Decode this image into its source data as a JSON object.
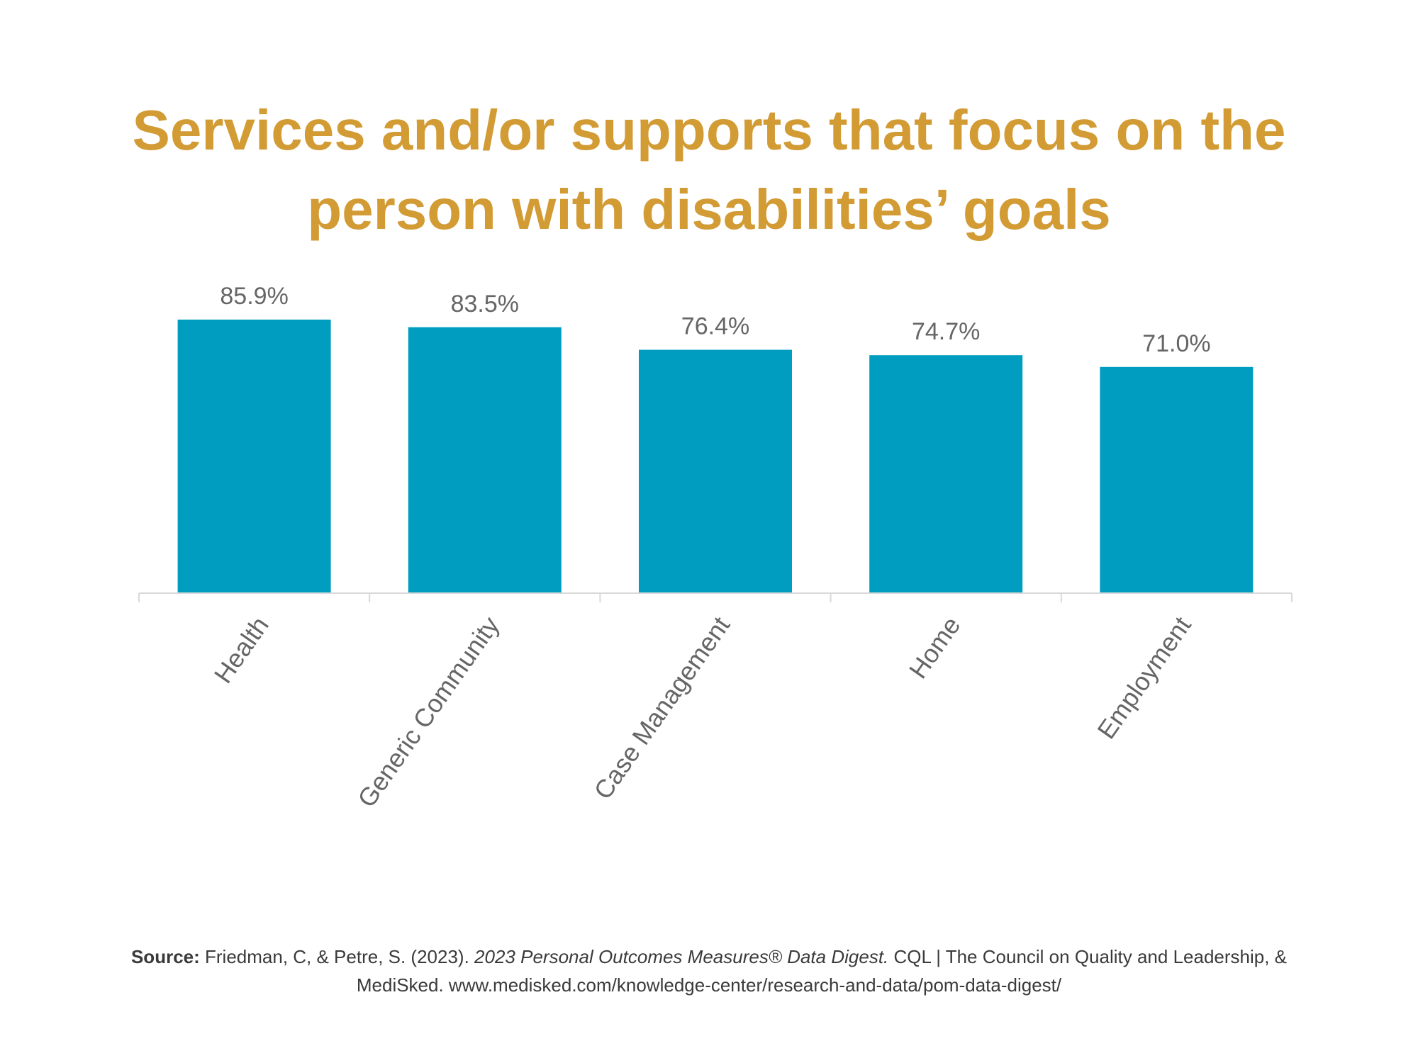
{
  "chart_data": {
    "type": "bar",
    "title": "Services and/or supports that focus on the person with disabilities’ goals",
    "categories": [
      "Health",
      "Generic Community",
      "Case Management",
      "Home",
      "Employment"
    ],
    "values": [
      85.9,
      83.5,
      76.4,
      74.7,
      71.0
    ],
    "value_labels": [
      "85.9%",
      "83.5%",
      "76.4%",
      "74.7%",
      "71.0%"
    ],
    "xlabel": "",
    "ylabel": "",
    "ylim": [
      0,
      100
    ],
    "grid": false,
    "legend": "none",
    "bar_color": "#009DC0",
    "label_color": "#666666",
    "axis_color": "#d9d9d9"
  },
  "colors": {
    "title": "#D29B34",
    "source_text": "#3a3a3a"
  },
  "source": {
    "label": "Source:",
    "text_before": " Friedman, C, & Petre, S. (2023). ",
    "italic": "2023 Personal Outcomes Measures® Data Digest.",
    "text_after": " CQL | The Council on Quality and Leadership, & MediSked. www.medisked.com/knowledge-center/research-and-data/pom-data-digest/"
  }
}
